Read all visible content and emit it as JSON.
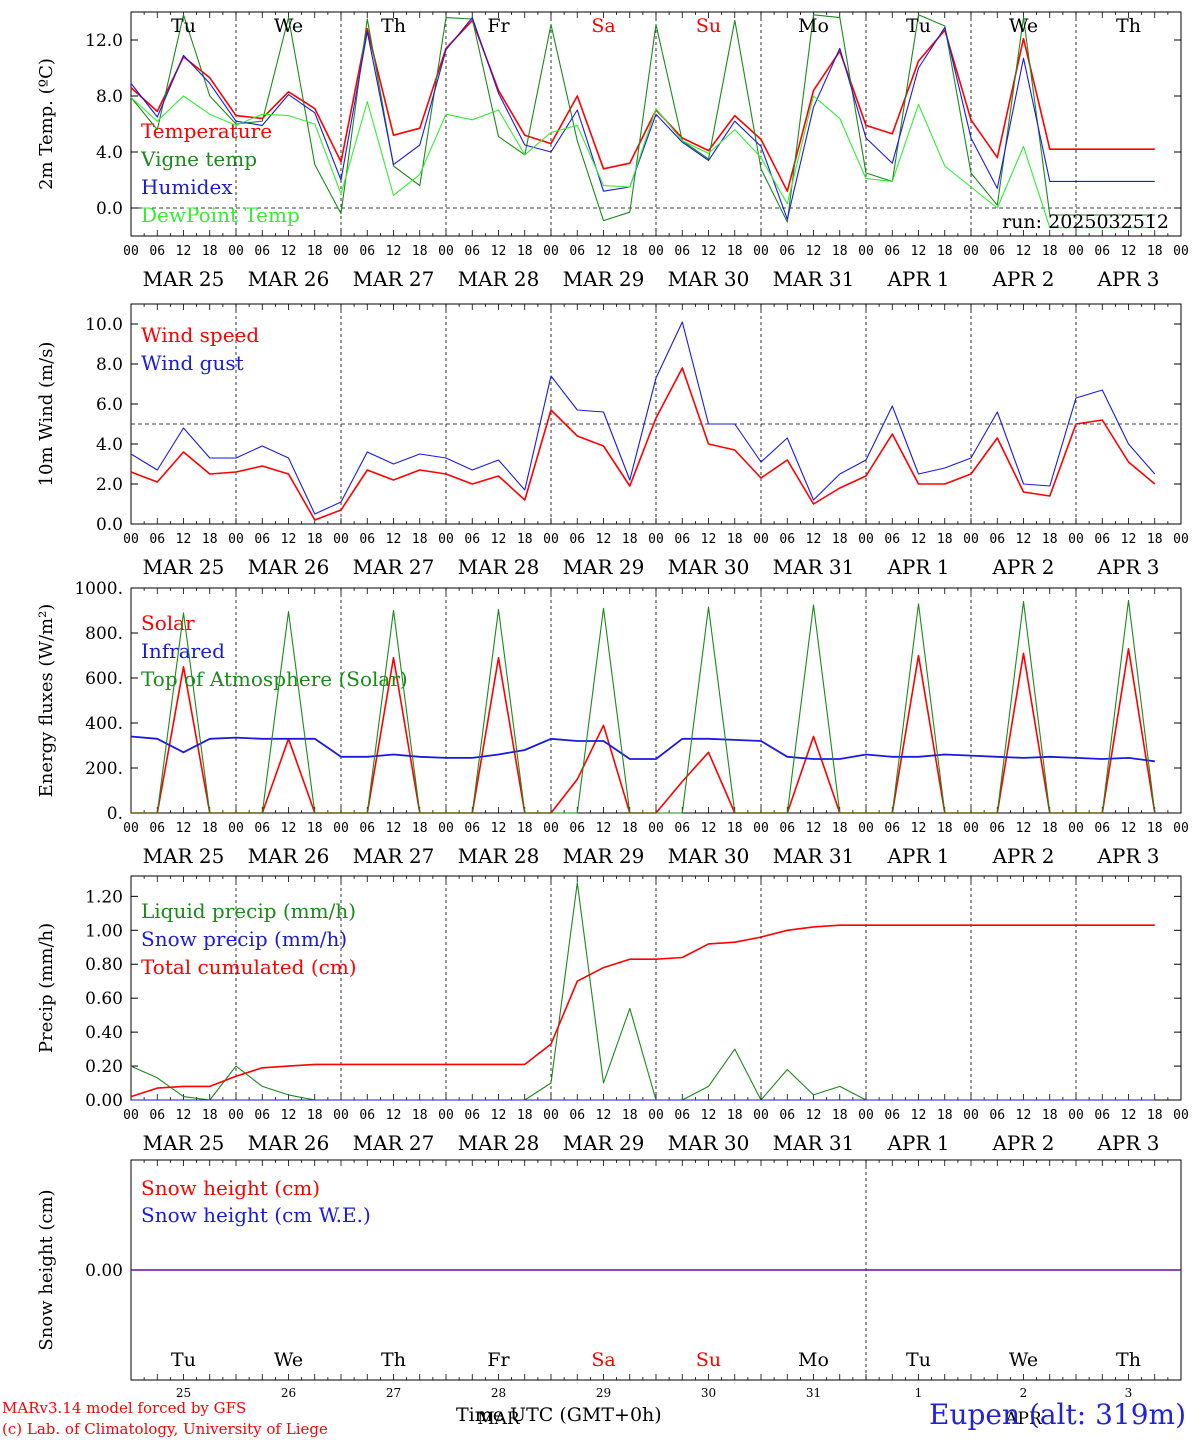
{
  "footer": {
    "model_line": "MARv3.14 model forced by GFS",
    "credit_line": "(c) Lab. of Climatology, University of Liege",
    "xlabel": "Time UTC (GMT+0h)",
    "station": "Eupen (alt: 319m)"
  },
  "colors": {
    "red": "#ff0000",
    "dark_green": "#1a8a1a",
    "blue": "#1a1adf",
    "light_green": "#33ee33",
    "axis": "#000000"
  },
  "time_axis": {
    "hour_ticks": [
      "00",
      "06",
      "12",
      "18"
    ],
    "date_labels": [
      "MAR 25",
      "MAR 26",
      "MAR 27",
      "MAR 28",
      "MAR 29",
      "MAR 30",
      "MAR 31",
      "APR  1",
      "APR  2",
      "APR  3"
    ],
    "weekdays": [
      "Tu",
      "We",
      "Th",
      "Fr",
      "Sa",
      "Su",
      "Mo",
      "Tu",
      "We",
      "Th"
    ],
    "weekend_flags": [
      false,
      false,
      false,
      false,
      true,
      true,
      false,
      false,
      false,
      false
    ],
    "day_numbers": [
      "25",
      "26",
      "27",
      "28",
      "29",
      "30",
      "31",
      "1",
      "2",
      "3"
    ],
    "bottom_month_labels": [
      "MAR",
      "APR"
    ]
  },
  "chart_data": [
    {
      "id": "temperature",
      "type": "line",
      "ylabel": "2m Temp. (ºC)",
      "ylim": [
        -2.0,
        14.0
      ],
      "yticks": [
        "0.0",
        "4.0",
        "8.0",
        "12.0"
      ],
      "ytick_values": [
        0,
        4,
        8,
        12
      ],
      "dashed_reference": 0,
      "run_label": "run: 2025032512",
      "x_hours": [
        0,
        6,
        12,
        18,
        24,
        30,
        36,
        42,
        48,
        54,
        60,
        66,
        72,
        78,
        84,
        90,
        96,
        102,
        108,
        114,
        120,
        126,
        132,
        138,
        144,
        150,
        156,
        162,
        168,
        174,
        180,
        186,
        192,
        198,
        204,
        210,
        216,
        222,
        228,
        234
      ],
      "series": [
        {
          "name": "Temperature",
          "color": "#ff0000",
          "values": [
            8.6,
            6.9,
            10.8,
            9.3,
            6.6,
            6.4,
            8.3,
            7.1,
            3.3,
            12.8,
            5.2,
            5.7,
            11.4,
            13.4,
            8.4,
            5.2,
            4.6,
            8.0,
            2.8,
            3.2,
            7.0,
            5.0,
            4.1,
            6.6,
            4.9,
            1.2,
            8.4,
            11.2,
            5.9,
            5.3,
            10.5,
            12.7,
            6.3,
            3.6,
            12.1,
            4.2,
            4.2,
            4.2,
            4.2,
            4.2
          ]
        },
        {
          "name": "Vigne temp",
          "color": "#1a8a1a",
          "values": [
            7.9,
            5.6,
            13.8,
            8.0,
            6.0,
            6.2,
            13.6,
            3.1,
            -0.4,
            13.5,
            3.0,
            1.6,
            13.6,
            13.5,
            5.1,
            3.8,
            13.1,
            4.8,
            -0.9,
            -0.3,
            13.1,
            4.8,
            3.5,
            13.4,
            2.8,
            -1.0,
            13.8,
            13.6,
            2.5,
            1.9,
            13.8,
            13.0,
            2.5,
            0.2,
            13.6,
            -0.5,
            -0.5,
            -0.5,
            -0.5,
            -0.5
          ]
        },
        {
          "name": "Humidex",
          "color": "#1a1adf",
          "values": [
            8.9,
            6.5,
            10.9,
            8.9,
            6.2,
            5.9,
            8.1,
            6.8,
            2.0,
            12.6,
            3.1,
            4.5,
            11.3,
            13.6,
            8.2,
            4.5,
            4.0,
            7.0,
            1.2,
            1.5,
            6.7,
            4.7,
            3.4,
            6.2,
            4.4,
            -0.8,
            7.2,
            11.4,
            5.0,
            3.2,
            10.0,
            12.9,
            5.0,
            1.4,
            10.7,
            1.9,
            1.9,
            1.9,
            1.9,
            1.9
          ]
        },
        {
          "name": "DewPoint Temp",
          "color": "#33ee33",
          "values": [
            7.9,
            6.2,
            8.0,
            6.7,
            5.9,
            6.7,
            6.6,
            6.0,
            1.0,
            7.6,
            0.9,
            2.4,
            6.7,
            6.3,
            7.0,
            3.8,
            5.4,
            5.9,
            1.6,
            1.5,
            7.1,
            4.8,
            3.9,
            5.6,
            3.6,
            0.3,
            8.0,
            6.4,
            2.1,
            1.9,
            7.4,
            3.0,
            1.5,
            0.0,
            4.4,
            -1.4,
            -1.4,
            -1.4,
            -1.4,
            -1.4
          ]
        }
      ]
    },
    {
      "id": "wind",
      "type": "line",
      "ylabel": "10m Wind (m/s)",
      "ylim": [
        0.0,
        11.0
      ],
      "yticks": [
        "0.0",
        "2.0",
        "4.0",
        "6.0",
        "8.0",
        "10.0"
      ],
      "ytick_values": [
        0,
        2,
        4,
        6,
        8,
        10
      ],
      "dashed_reference": 5,
      "x_hours": [
        0,
        6,
        12,
        18,
        24,
        30,
        36,
        42,
        48,
        54,
        60,
        66,
        72,
        78,
        84,
        90,
        96,
        102,
        108,
        114,
        120,
        126,
        132,
        138,
        144,
        150,
        156,
        162,
        168,
        174,
        180,
        186,
        192,
        198,
        204,
        210,
        216,
        222,
        228,
        234
      ],
      "series": [
        {
          "name": "Wind speed",
          "color": "#ff0000",
          "values": [
            2.6,
            2.1,
            3.6,
            2.5,
            2.6,
            2.9,
            2.5,
            0.2,
            0.7,
            2.7,
            2.2,
            2.7,
            2.5,
            2.0,
            2.4,
            1.2,
            5.7,
            4.4,
            3.9,
            1.9,
            5.3,
            7.8,
            4.0,
            3.7,
            2.3,
            3.2,
            1.0,
            1.8,
            2.4,
            4.5,
            2.0,
            2.0,
            2.5,
            4.3,
            1.6,
            1.4,
            5.0,
            5.2,
            3.1,
            2.0
          ]
        },
        {
          "name": "Wind gust",
          "color": "#1a1adf",
          "values": [
            3.5,
            2.7,
            4.8,
            3.3,
            3.3,
            3.9,
            3.3,
            0.5,
            1.1,
            3.6,
            3.0,
            3.5,
            3.3,
            2.7,
            3.2,
            1.7,
            7.4,
            5.7,
            5.6,
            2.2,
            7.3,
            10.1,
            5.0,
            5.0,
            3.1,
            4.3,
            1.2,
            2.5,
            3.2,
            5.9,
            2.5,
            2.8,
            3.3,
            5.6,
            2.0,
            1.9,
            6.3,
            6.7,
            4.0,
            2.5
          ]
        }
      ]
    },
    {
      "id": "energy",
      "type": "line",
      "ylabel": "Energy fluxes (W/m²)",
      "ylim": [
        0,
        1000
      ],
      "yticks": [
        "0.",
        "200.",
        "400.",
        "600.",
        "800.",
        "1000."
      ],
      "ytick_values": [
        0,
        200,
        400,
        600,
        800,
        1000
      ],
      "x_hours": [
        0,
        6,
        12,
        18,
        24,
        30,
        36,
        42,
        48,
        54,
        60,
        66,
        72,
        78,
        84,
        90,
        96,
        102,
        108,
        114,
        120,
        126,
        132,
        138,
        144,
        150,
        156,
        162,
        168,
        174,
        180,
        186,
        192,
        198,
        204,
        210,
        216,
        222,
        228,
        234
      ],
      "series": [
        {
          "name": "Solar",
          "color": "#ff0000",
          "values": [
            0,
            0,
            650,
            0,
            0,
            0,
            330,
            0,
            0,
            0,
            690,
            0,
            0,
            0,
            690,
            0,
            0,
            150,
            390,
            0,
            0,
            140,
            270,
            0,
            0,
            0,
            340,
            0,
            0,
            0,
            700,
            0,
            0,
            0,
            710,
            0,
            0,
            0,
            730,
            0
          ]
        },
        {
          "name": "Infrared",
          "color": "#1a1adf",
          "values": [
            340,
            330,
            270,
            330,
            335,
            330,
            330,
            330,
            250,
            250,
            260,
            250,
            245,
            245,
            260,
            280,
            330,
            320,
            320,
            240,
            240,
            330,
            330,
            325,
            320,
            250,
            240,
            240,
            260,
            250,
            250,
            260,
            255,
            250,
            245,
            250,
            245,
            240,
            245,
            230
          ]
        },
        {
          "name": "Top of Atmosphere (Solar)",
          "color": "#1a8a1a",
          "values": [
            0,
            0,
            890,
            0,
            0,
            0,
            895,
            0,
            0,
            0,
            900,
            0,
            0,
            0,
            905,
            0,
            0,
            0,
            910,
            0,
            0,
            0,
            915,
            0,
            0,
            0,
            925,
            0,
            0,
            0,
            930,
            0,
            0,
            0,
            940,
            0,
            0,
            0,
            945,
            0
          ]
        }
      ]
    },
    {
      "id": "precip",
      "type": "line",
      "ylabel": "Precip (mm/h)",
      "ylim": [
        0.0,
        1.32
      ],
      "yticks": [
        "0.00",
        "0.20",
        "0.40",
        "0.60",
        "0.80",
        "1.00",
        "1.20"
      ],
      "ytick_values": [
        0,
        0.2,
        0.4,
        0.6,
        0.8,
        1.0,
        1.2
      ],
      "x_hours": [
        0,
        6,
        12,
        18,
        24,
        30,
        36,
        42,
        48,
        54,
        60,
        66,
        72,
        78,
        84,
        90,
        96,
        102,
        108,
        114,
        120,
        126,
        132,
        138,
        144,
        150,
        156,
        162,
        168,
        174,
        180,
        186,
        192,
        198,
        204,
        210,
        216,
        222,
        228,
        234
      ],
      "series": [
        {
          "name": "Liquid precip (mm/h)",
          "color": "#1a8a1a",
          "values": [
            0.2,
            0.13,
            0.02,
            0.0,
            0.2,
            0.08,
            0.03,
            0.0,
            0.0,
            0.0,
            0.0,
            0.0,
            0.0,
            0.0,
            0.0,
            0.0,
            0.1,
            1.28,
            0.1,
            0.54,
            0.0,
            0.0,
            0.08,
            0.3,
            0.0,
            0.18,
            0.03,
            0.08,
            0.0,
            0.0,
            0.0,
            0.0,
            0.0,
            0.0,
            0.0,
            0.0,
            0.0,
            0.0,
            0.0,
            0.0
          ]
        },
        {
          "name": "Snow precip (mm/h)",
          "color": "#1a1adf",
          "values": [
            0,
            0,
            0,
            0,
            0,
            0,
            0,
            0,
            0,
            0,
            0,
            0,
            0,
            0,
            0,
            0,
            0,
            0,
            0,
            0,
            0,
            0,
            0,
            0,
            0,
            0,
            0,
            0,
            0,
            0,
            0,
            0,
            0,
            0,
            0,
            0,
            0,
            0,
            0,
            0
          ]
        },
        {
          "name": "Total cumulated (cm)",
          "color": "#ff0000",
          "values": [
            0.02,
            0.07,
            0.08,
            0.08,
            0.14,
            0.19,
            0.2,
            0.21,
            0.21,
            0.21,
            0.21,
            0.21,
            0.21,
            0.21,
            0.21,
            0.21,
            0.33,
            0.7,
            0.78,
            0.83,
            0.83,
            0.84,
            0.92,
            0.93,
            0.96,
            1.0,
            1.02,
            1.03,
            1.03,
            1.03,
            1.03,
            1.03,
            1.03,
            1.03,
            1.03,
            1.03,
            1.03,
            1.03,
            1.03,
            1.03
          ]
        }
      ]
    },
    {
      "id": "snow",
      "type": "line",
      "ylabel": "Snow height (cm)",
      "ylim": [
        -1.0,
        1.0
      ],
      "yticks": [
        "0.00"
      ],
      "ytick_values": [
        0
      ],
      "x_hours": [
        0,
        240
      ],
      "series": [
        {
          "name": "Snow height (cm)",
          "color": "#ff0000",
          "values": [
            0,
            0
          ]
        },
        {
          "name": "Snow height (cm W.E.)",
          "color": "#1a1adf",
          "values": [
            0,
            0
          ]
        }
      ]
    }
  ]
}
